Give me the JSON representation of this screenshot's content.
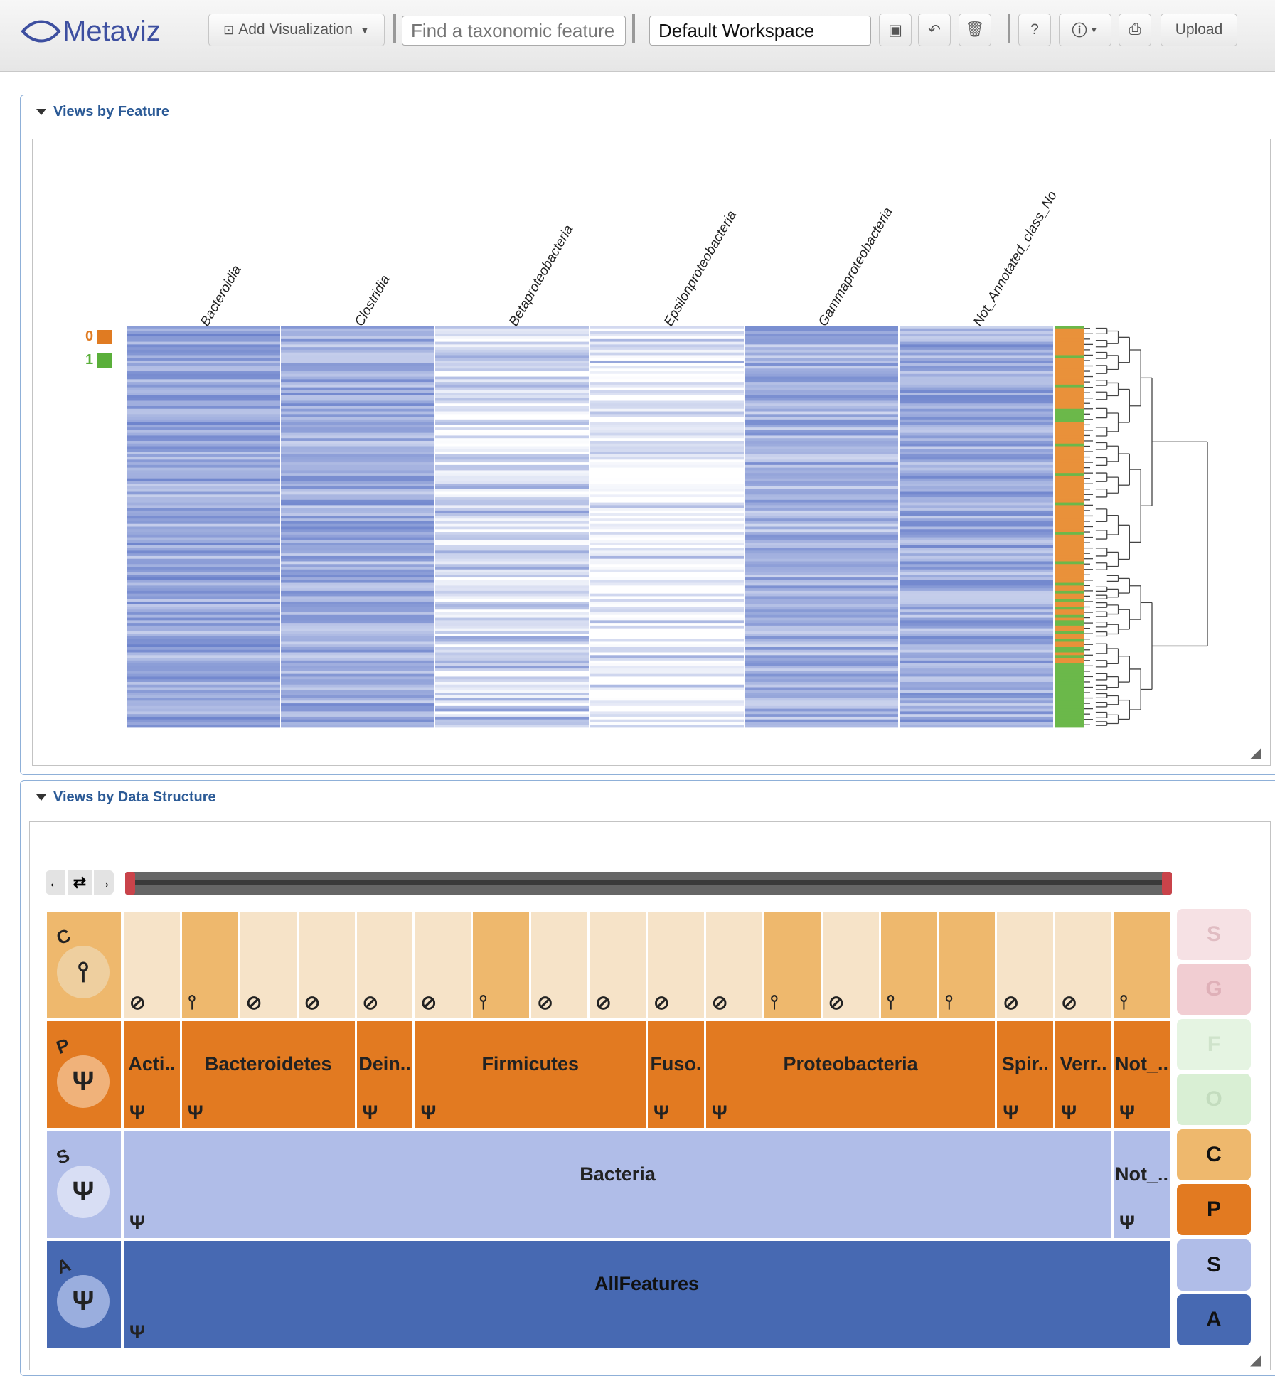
{
  "app": {
    "logo_text": "Metaviz"
  },
  "toolbar": {
    "add_visualization_label": "Add Visualization",
    "search_placeholder": "Find a taxonomic feature",
    "workspace_value": "Default Workspace",
    "help_label": "?",
    "upload_label": "Upload"
  },
  "panels": {
    "feature_title": "Views by Feature",
    "structure_title": "Views by Data Structure"
  },
  "heatmap": {
    "columns": [
      "Bacteroidia",
      "Clostridia",
      "Betaproteobacteria",
      "Epsilonproteobacteria",
      "Gammaproteobacteria",
      "Not_Annotated_class_No"
    ],
    "groups": [
      {
        "label": "0",
        "color": "#e07b22"
      },
      {
        "label": "1",
        "color": "#5aaf3a"
      }
    ],
    "scale_colors": {
      "low": "#ffffff",
      "high": "#5b74c6"
    }
  },
  "icicle": {
    "levels": [
      {
        "key": "C",
        "name": "class",
        "cells": [
          {
            "label": "",
            "icon": "no"
          },
          {
            "label": "",
            "icon": "leaf"
          },
          {
            "label": "",
            "icon": "no"
          },
          {
            "label": "",
            "icon": "no"
          },
          {
            "label": "",
            "icon": "no"
          },
          {
            "label": "",
            "icon": "no"
          },
          {
            "label": "",
            "icon": "leaf"
          },
          {
            "label": "",
            "icon": "no"
          },
          {
            "label": "",
            "icon": "no"
          },
          {
            "label": "",
            "icon": "no"
          },
          {
            "label": "",
            "icon": "no"
          },
          {
            "label": "",
            "icon": "leaf"
          },
          {
            "label": "",
            "icon": "no"
          },
          {
            "label": "",
            "icon": "leaf"
          },
          {
            "label": "",
            "icon": "leaf"
          },
          {
            "label": "",
            "icon": "no"
          },
          {
            "label": "",
            "icon": "no"
          },
          {
            "label": "",
            "icon": "leaf"
          }
        ]
      },
      {
        "key": "P",
        "name": "phylum",
        "cells": [
          {
            "label": "Acti..",
            "span": 1
          },
          {
            "label": "Bacteroidetes",
            "span": 3
          },
          {
            "label": "Dein..",
            "span": 1
          },
          {
            "label": "Firmicutes",
            "span": 4
          },
          {
            "label": "Fuso.",
            "span": 1
          },
          {
            "label": "Proteobacteria",
            "span": 5
          },
          {
            "label": "Spir..",
            "span": 1
          },
          {
            "label": "Verr..",
            "span": 1
          },
          {
            "label": "Not_..",
            "span": 1
          }
        ]
      },
      {
        "key": "S",
        "name": "superkingdom",
        "cells": [
          {
            "label": "Bacteria",
            "span": 17
          },
          {
            "label": "Not_..",
            "span": 1
          }
        ]
      },
      {
        "key": "A",
        "name": "all",
        "cells": [
          {
            "label": "AllFeatures",
            "span": 18
          }
        ]
      }
    ],
    "side_levels": [
      "S",
      "G",
      "F",
      "O",
      "C",
      "P",
      "S",
      "A"
    ],
    "colors": {
      "class_light": "#f6e3c8",
      "class_dark": "#eeb86d",
      "phylum": "#e27a21",
      "superkingdom": "#b0bde8",
      "all": "#4769b2",
      "inactive_pink": "#f6e1e4",
      "inactive_green": "#e5f4e2"
    }
  },
  "icons": {
    "no": "⊘",
    "leaf": "leaf-icon",
    "tree": "Ψ",
    "left": "←",
    "right": "→",
    "swap": "⇄"
  }
}
